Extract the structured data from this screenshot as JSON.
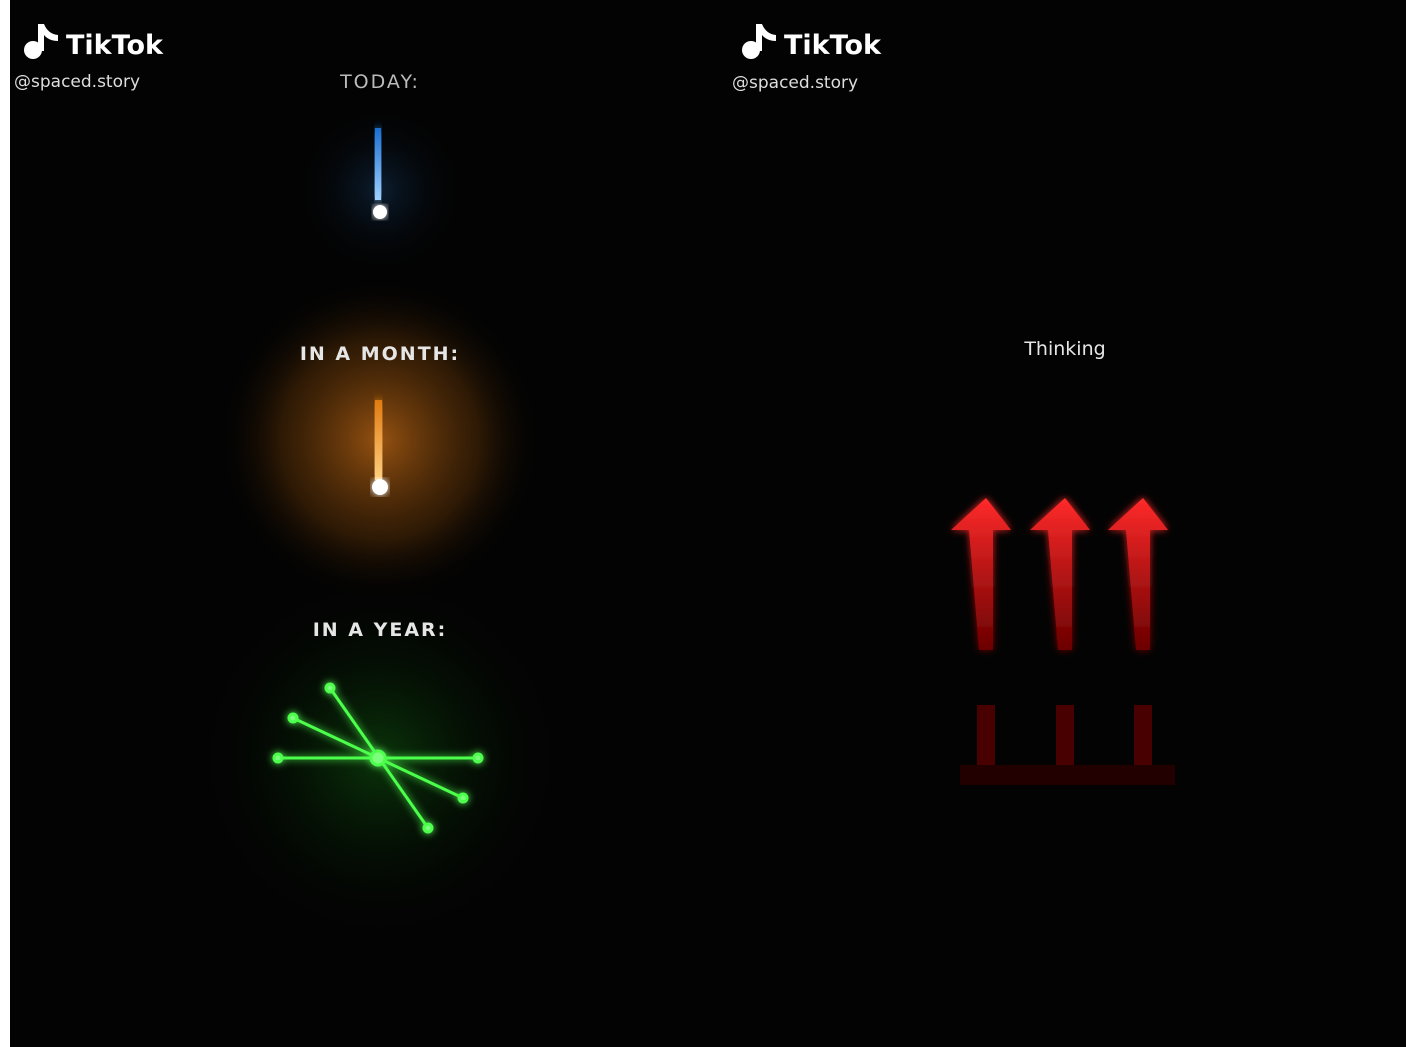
{
  "panels": [
    {
      "logo": "TikTok",
      "handle": "@spaced.story",
      "captions": [
        "TODAY:",
        "IN A MONTH:",
        "IN A YEAR:"
      ]
    },
    {
      "logo": "TikTok",
      "handle": "@spaced.story",
      "caption": "Thinking"
    }
  ]
}
